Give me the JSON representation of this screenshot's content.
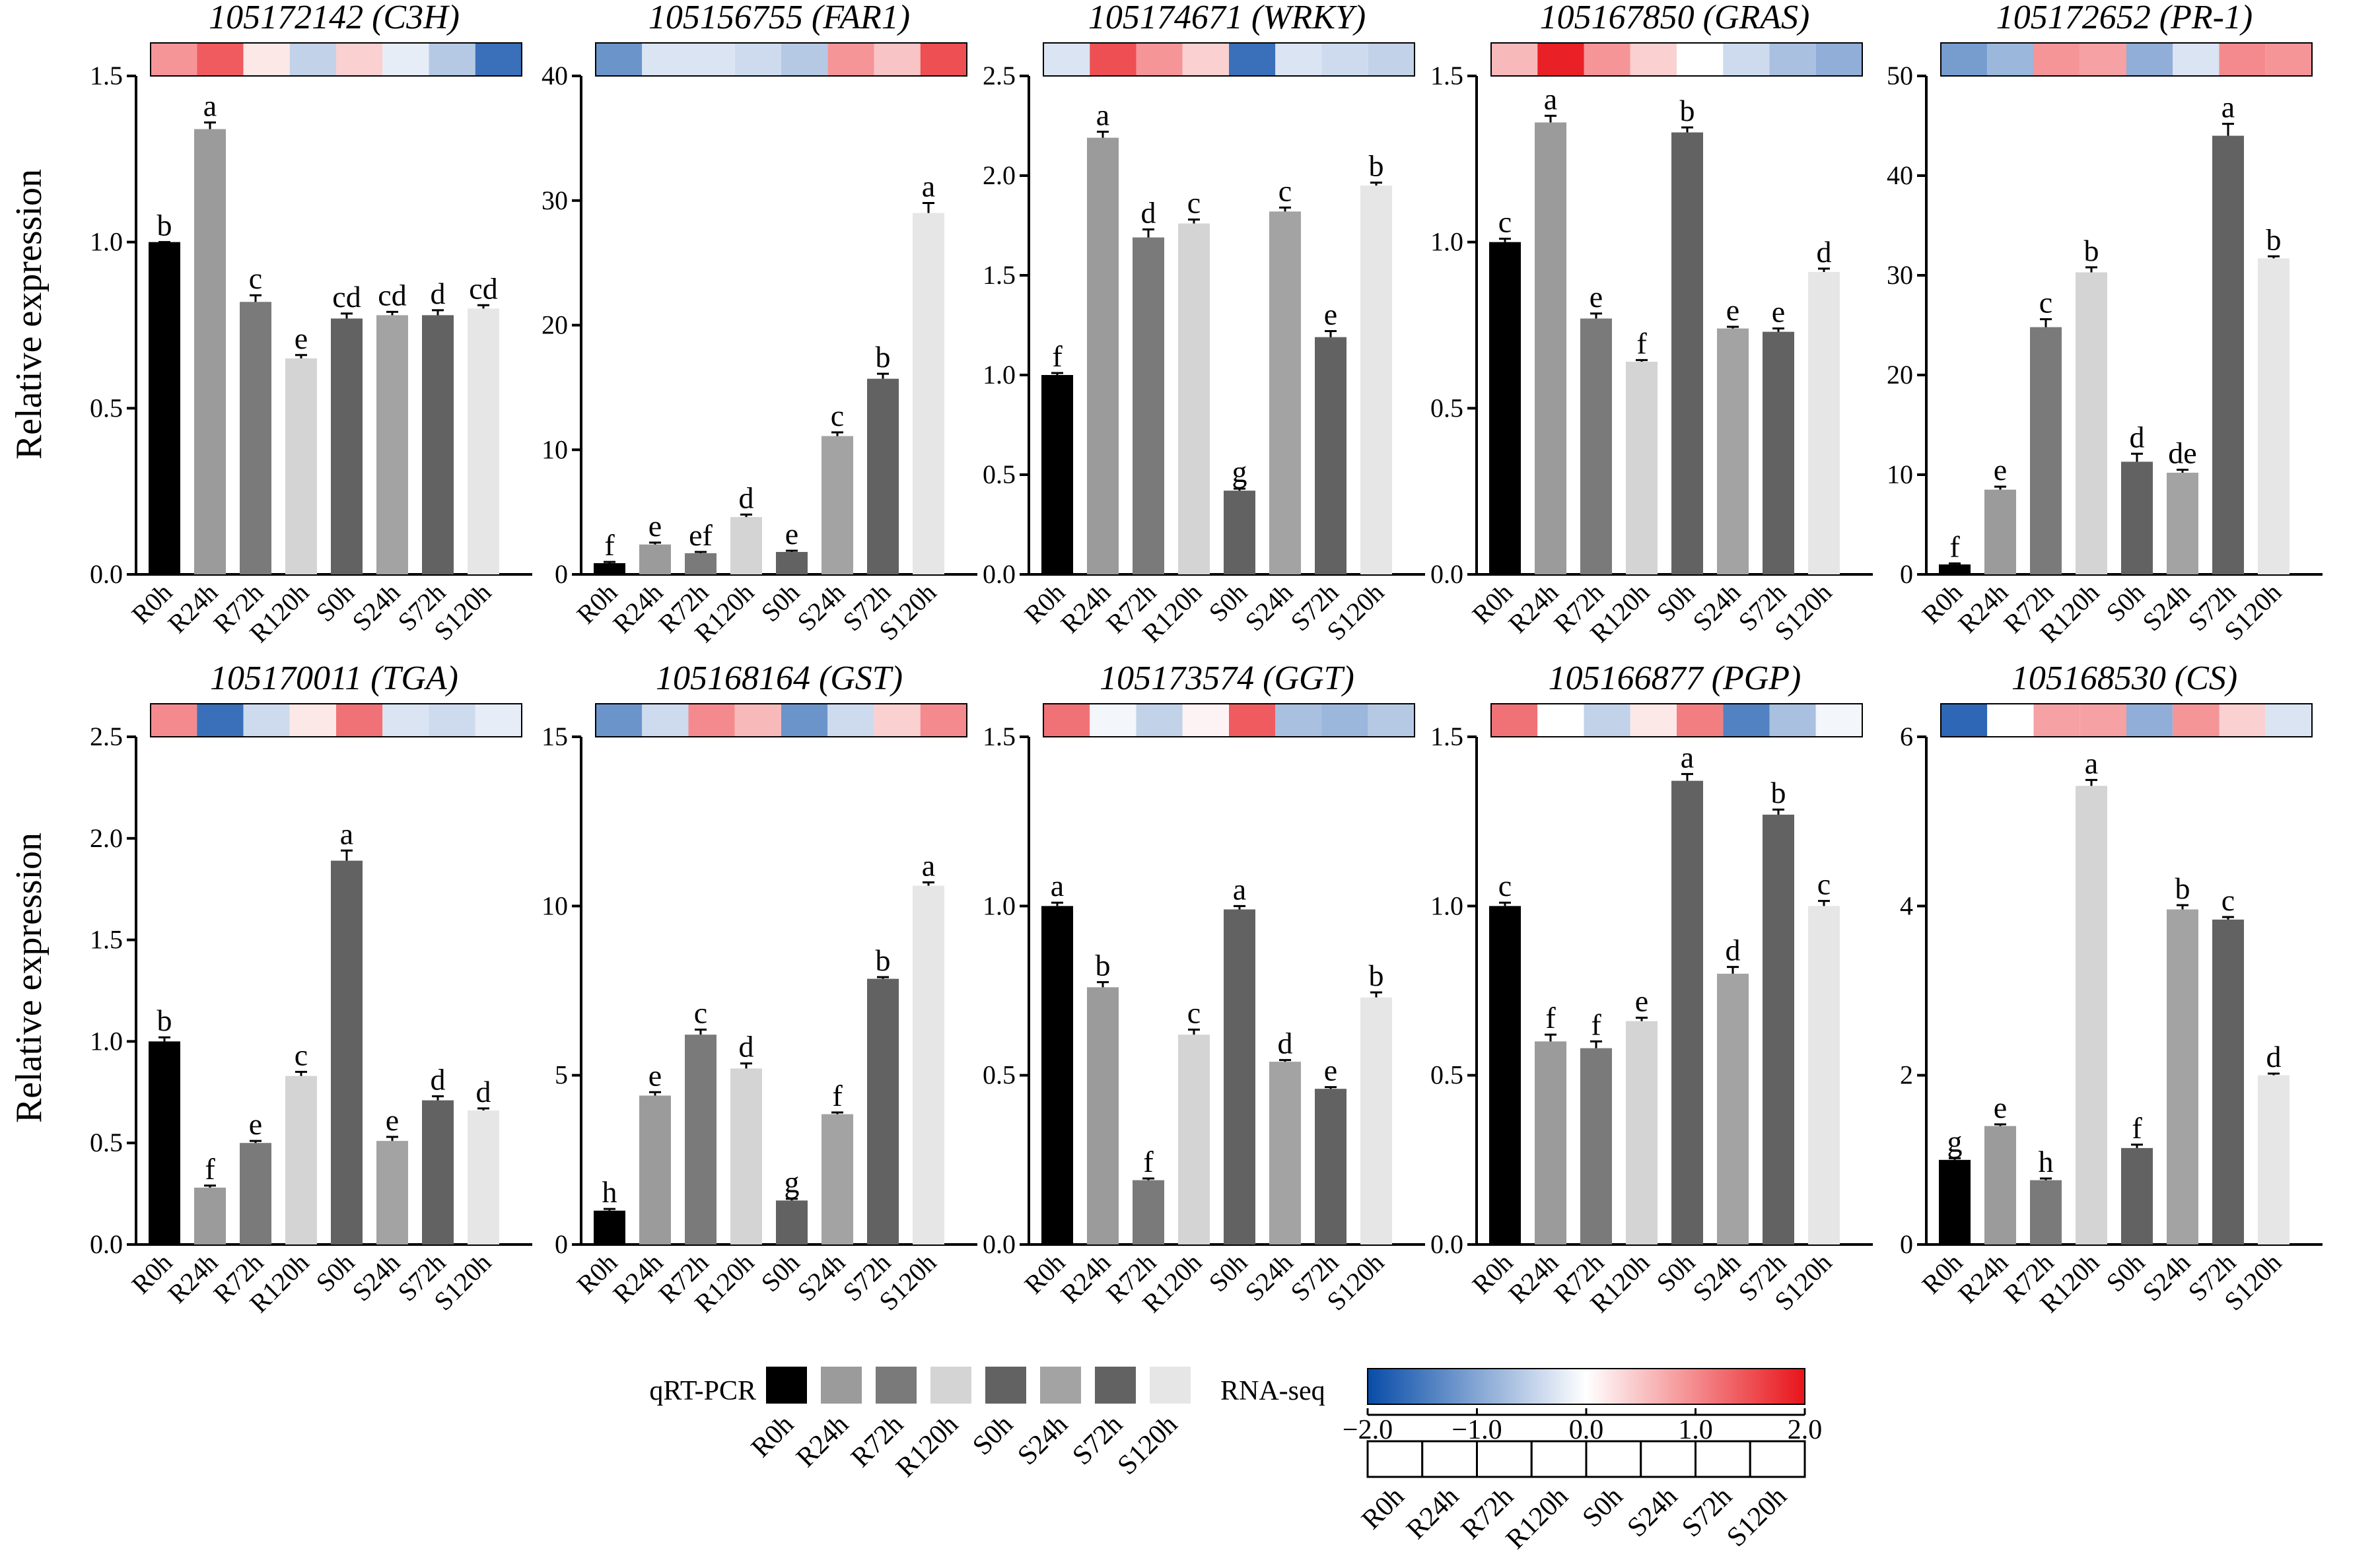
{
  "figure": {
    "ylabel": "Relative expression",
    "samples": [
      "R0h",
      "R24h",
      "R72h",
      "R120h",
      "S0h",
      "S24h",
      "S72h",
      "S120h"
    ],
    "bar_colors": [
      "#000000",
      "#9b9b9b",
      "#7a7a7a",
      "#d4d4d4",
      "#626262",
      "#a3a3a3",
      "#626262",
      "#e6e6e6"
    ]
  },
  "legend": {
    "qrt_label": "qRT-PCR",
    "rna_label": "RNA-seq",
    "scale_min": -2.0,
    "scale_max": 2.0,
    "scale_ticks": [
      "−2.0",
      "−1.0",
      "0.0",
      "1.0",
      "2.0"
    ],
    "scale_tick_values": [
      -2.0,
      -1.0,
      0.0,
      1.0,
      2.0
    ]
  },
  "chart_data": [
    {
      "type": "bar",
      "title": "105172142 (C3H)",
      "ylim": [
        0,
        1.5
      ],
      "yticks": [
        0,
        0.5,
        1.0,
        1.5
      ],
      "tick_decimals": 1,
      "categories": [
        "R0h",
        "R24h",
        "R72h",
        "R120h",
        "S0h",
        "S24h",
        "S72h",
        "S120h"
      ],
      "values": [
        1.0,
        1.34,
        0.82,
        0.65,
        0.77,
        0.78,
        0.78,
        0.8
      ],
      "errors": [
        0.0,
        0.02,
        0.02,
        0.01,
        0.015,
        0.01,
        0.015,
        0.01
      ],
      "letters": [
        "b",
        "a",
        "c",
        "e",
        "cd",
        "cd",
        "d",
        "cd"
      ],
      "heatmap": [
        0.9,
        1.4,
        0.2,
        -0.5,
        0.4,
        -0.2,
        -0.6,
        -1.6
      ]
    },
    {
      "type": "bar",
      "title": "105156755 (FAR1)",
      "ylim": [
        0,
        40
      ],
      "yticks": [
        0,
        10,
        20,
        30,
        40
      ],
      "tick_decimals": 0,
      "categories": [
        "R0h",
        "R24h",
        "R72h",
        "R120h",
        "S0h",
        "S24h",
        "S72h",
        "S120h"
      ],
      "values": [
        0.9,
        2.4,
        1.7,
        4.6,
        1.8,
        11.1,
        15.7,
        29.0
      ],
      "errors": [
        0.1,
        0.15,
        0.1,
        0.2,
        0.1,
        0.3,
        0.4,
        0.8
      ],
      "letters": [
        "f",
        "e",
        "ef",
        "d",
        "e",
        "c",
        "b",
        "a"
      ],
      "heatmap": [
        -1.2,
        -0.3,
        -0.3,
        -0.4,
        -0.6,
        0.9,
        0.5,
        1.5
      ]
    },
    {
      "type": "bar",
      "title": "105174671 (WRKY)",
      "ylim": [
        0,
        2.5
      ],
      "yticks": [
        0,
        0.5,
        1.0,
        1.5,
        2.0,
        2.5
      ],
      "tick_decimals": 1,
      "categories": [
        "R0h",
        "R24h",
        "R72h",
        "R120h",
        "S0h",
        "S24h",
        "S72h",
        "S120h"
      ],
      "values": [
        1.0,
        2.19,
        1.69,
        1.76,
        0.42,
        1.82,
        1.19,
        1.95
      ],
      "errors": [
        0.01,
        0.03,
        0.04,
        0.02,
        0.01,
        0.02,
        0.03,
        0.015
      ],
      "letters": [
        "f",
        "a",
        "d",
        "c",
        "g",
        "c",
        "e",
        "b"
      ],
      "heatmap": [
        -0.3,
        1.5,
        0.9,
        0.4,
        -1.6,
        -0.3,
        -0.4,
        -0.5
      ]
    },
    {
      "type": "bar",
      "title": "105167850 (GRAS)",
      "ylim": [
        0,
        1.5
      ],
      "yticks": [
        0,
        0.5,
        1.0,
        1.5
      ],
      "tick_decimals": 1,
      "categories": [
        "R0h",
        "R24h",
        "R72h",
        "R120h",
        "S0h",
        "S24h",
        "S72h",
        "S120h"
      ],
      "values": [
        1.0,
        1.36,
        0.77,
        0.64,
        1.33,
        0.74,
        0.73,
        0.91
      ],
      "errors": [
        0.01,
        0.02,
        0.015,
        0.005,
        0.015,
        0.005,
        0.01,
        0.01
      ],
      "letters": [
        "c",
        "a",
        "e",
        "f",
        "b",
        "e",
        "e",
        "d"
      ],
      "heatmap": [
        0.6,
        1.9,
        0.9,
        0.4,
        0.0,
        -0.4,
        -0.7,
        -0.9
      ]
    },
    {
      "type": "bar",
      "title": "105172652 (PR-1)",
      "ylim": [
        0,
        50
      ],
      "yticks": [
        0,
        10,
        20,
        30,
        40,
        50
      ],
      "tick_decimals": 0,
      "categories": [
        "R0h",
        "R24h",
        "R72h",
        "R120h",
        "S0h",
        "S24h",
        "S72h",
        "S120h"
      ],
      "values": [
        1.0,
        8.5,
        24.8,
        30.3,
        11.3,
        10.2,
        44.0,
        31.7
      ],
      "errors": [
        0.1,
        0.3,
        0.8,
        0.5,
        0.8,
        0.3,
        1.2,
        0.2
      ],
      "letters": [
        "f",
        "e",
        "c",
        "b",
        "d",
        "de",
        "a",
        "b"
      ],
      "heatmap": [
        -1.1,
        -0.8,
        0.9,
        0.8,
        -0.9,
        -0.3,
        1.0,
        0.9
      ]
    },
    {
      "type": "bar",
      "title": "105170011 (TGA)",
      "ylim": [
        0,
        2.5
      ],
      "yticks": [
        0,
        0.5,
        1.0,
        1.5,
        2.0,
        2.5
      ],
      "tick_decimals": 1,
      "categories": [
        "R0h",
        "R24h",
        "R72h",
        "R120h",
        "S0h",
        "S24h",
        "S72h",
        "S120h"
      ],
      "values": [
        1.0,
        0.28,
        0.5,
        0.83,
        1.89,
        0.51,
        0.71,
        0.66
      ],
      "errors": [
        0.02,
        0.01,
        0.01,
        0.02,
        0.05,
        0.02,
        0.02,
        0.01
      ],
      "letters": [
        "b",
        "f",
        "e",
        "c",
        "a",
        "e",
        "d",
        "d"
      ],
      "heatmap": [
        1.0,
        -1.6,
        -0.4,
        0.2,
        1.2,
        -0.3,
        -0.4,
        -0.2
      ]
    },
    {
      "type": "bar",
      "title": "105168164 (GST)",
      "ylim": [
        0,
        15
      ],
      "yticks": [
        0,
        5,
        10,
        15
      ],
      "tick_decimals": 0,
      "categories": [
        "R0h",
        "R24h",
        "R72h",
        "R120h",
        "S0h",
        "S24h",
        "S72h",
        "S120h"
      ],
      "values": [
        1.0,
        4.4,
        6.2,
        5.2,
        1.3,
        3.85,
        7.85,
        10.6
      ],
      "errors": [
        0.05,
        0.1,
        0.15,
        0.15,
        0.05,
        0.05,
        0.05,
        0.1
      ],
      "letters": [
        "h",
        "e",
        "c",
        "d",
        "g",
        "f",
        "b",
        "a"
      ],
      "heatmap": [
        -1.2,
        -0.4,
        1.0,
        0.6,
        -1.2,
        -0.4,
        0.4,
        1.0
      ]
    },
    {
      "type": "bar",
      "title": "105173574 (GGT)",
      "ylim": [
        0,
        1.5
      ],
      "yticks": [
        0,
        0.5,
        1.0,
        1.5
      ],
      "tick_decimals": 1,
      "categories": [
        "R0h",
        "R24h",
        "R72h",
        "R120h",
        "S0h",
        "S24h",
        "S72h",
        "S120h"
      ],
      "values": [
        1.0,
        0.76,
        0.19,
        0.62,
        0.99,
        0.54,
        0.46,
        0.73
      ],
      "errors": [
        0.01,
        0.015,
        0.005,
        0.015,
        0.01,
        0.005,
        0.005,
        0.015
      ],
      "letters": [
        "a",
        "b",
        "f",
        "c",
        "a",
        "d",
        "e",
        "b"
      ],
      "heatmap": [
        1.2,
        -0.1,
        -0.5,
        0.1,
        1.4,
        -0.7,
        -0.8,
        -0.6
      ]
    },
    {
      "type": "bar",
      "title": "105166877 (PGP)",
      "ylim": [
        0,
        1.5
      ],
      "yticks": [
        0,
        0.5,
        1.0,
        1.5
      ],
      "tick_decimals": 1,
      "categories": [
        "R0h",
        "R24h",
        "R72h",
        "R120h",
        "S0h",
        "S24h",
        "S72h",
        "S120h"
      ],
      "values": [
        1.0,
        0.6,
        0.58,
        0.66,
        1.37,
        0.8,
        1.27,
        1.0
      ],
      "errors": [
        0.01,
        0.02,
        0.02,
        0.01,
        0.02,
        0.02,
        0.015,
        0.015
      ],
      "letters": [
        "c",
        "f",
        "f",
        "e",
        "a",
        "d",
        "b",
        "c"
      ],
      "heatmap": [
        1.2,
        0.0,
        -0.5,
        0.2,
        1.1,
        -1.4,
        -0.7,
        -0.1
      ]
    },
    {
      "type": "bar",
      "title": "105168530 (CS)",
      "ylim": [
        0,
        6
      ],
      "yticks": [
        0,
        2,
        4,
        6
      ],
      "tick_decimals": 0,
      "categories": [
        "R0h",
        "R24h",
        "R72h",
        "R120h",
        "S0h",
        "S24h",
        "S72h",
        "S120h"
      ],
      "values": [
        1.0,
        1.4,
        0.76,
        5.42,
        1.14,
        3.96,
        3.84,
        2.0
      ],
      "errors": [
        0.02,
        0.02,
        0.02,
        0.07,
        0.04,
        0.05,
        0.03,
        0.02
      ],
      "letters": [
        "g",
        "e",
        "h",
        "a",
        "f",
        "b",
        "c",
        "d"
      ],
      "heatmap": [
        -1.7,
        0.0,
        0.8,
        0.8,
        -0.9,
        0.9,
        0.4,
        -0.3
      ]
    }
  ]
}
